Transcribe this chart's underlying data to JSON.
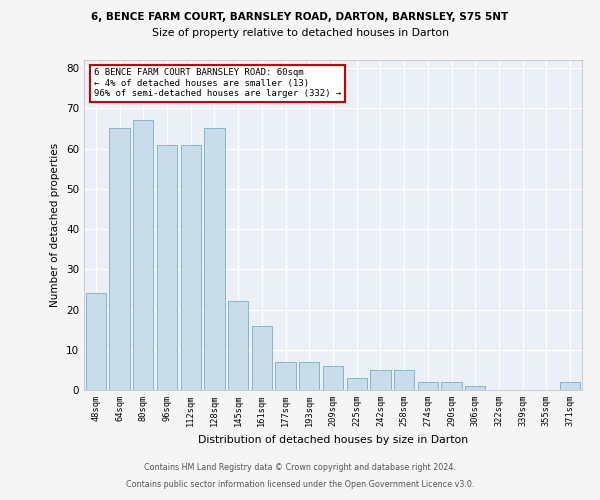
{
  "title_line1": "6, BENCE FARM COURT, BARNSLEY ROAD, DARTON, BARNSLEY, S75 5NT",
  "title_line2": "Size of property relative to detached houses in Darton",
  "xlabel": "Distribution of detached houses by size in Darton",
  "ylabel": "Number of detached properties",
  "categories": [
    "48sqm",
    "64sqm",
    "80sqm",
    "96sqm",
    "112sqm",
    "128sqm",
    "145sqm",
    "161sqm",
    "177sqm",
    "193sqm",
    "209sqm",
    "225sqm",
    "242sqm",
    "258sqm",
    "274sqm",
    "290sqm",
    "306sqm",
    "322sqm",
    "339sqm",
    "355sqm",
    "371sqm"
  ],
  "values": [
    24,
    65,
    67,
    61,
    61,
    65,
    22,
    16,
    7,
    7,
    6,
    3,
    5,
    5,
    2,
    2,
    1,
    0,
    0,
    0,
    2
  ],
  "bar_color": "#c9dcea",
  "bar_edge_color": "#7aaec8",
  "annotation_title": "6 BENCE FARM COURT BARNSLEY ROAD: 60sqm",
  "annotation_line2": "← 4% of detached houses are smaller (13)",
  "annotation_line3": "96% of semi-detached houses are larger (332) →",
  "annotation_box_color": "#ffffff",
  "annotation_box_edge": "#cc0000",
  "footer_line1": "Contains HM Land Registry data © Crown copyright and database right 2024.",
  "footer_line2": "Contains public sector information licensed under the Open Government Licence v3.0.",
  "ylim": [
    0,
    82
  ],
  "yticks": [
    0,
    10,
    20,
    30,
    40,
    50,
    60,
    70,
    80
  ],
  "background_color": "#eaf0f6",
  "grid_color": "#ffffff",
  "fig_bg": "#f5f5f5"
}
